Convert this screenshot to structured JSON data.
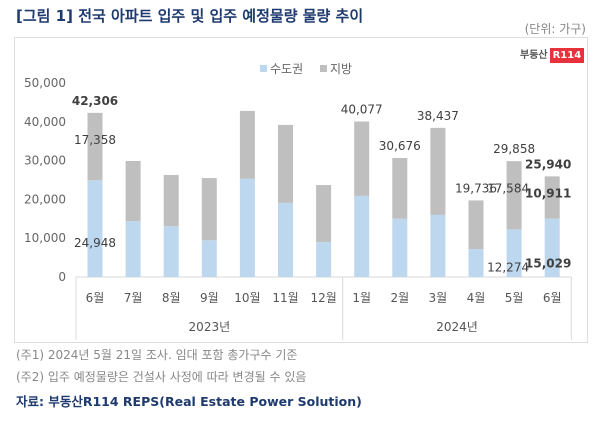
{
  "title": "[그림 1] 전국 아파트 입주 및 입주 예정물량 물량 추이",
  "unit": "(단위: 가구)",
  "logo": {
    "text": "부동산",
    "badge": "R114"
  },
  "notes": [
    "(주1) 2024년 5월 21일 조사. 임대 포함 총가구수 기준",
    "(주2) 입주 예정물량은 건설사 사정에 따라 변경될 수 있음"
  ],
  "source": "자료: 부동산R114 REPS(Real Estate Power Solution)",
  "colors": {
    "metro": "#bdd7ee",
    "local": "#bfbfbf"
  },
  "chart_data": {
    "type": "bar",
    "stacked": true,
    "categories": [
      "6월",
      "7월",
      "8월",
      "9월",
      "10월",
      "11월",
      "12월",
      "1월",
      "2월",
      "3월",
      "4월",
      "5월",
      "6월"
    ],
    "years": [
      {
        "label": "2023년",
        "count": 7
      },
      {
        "label": "2024년",
        "count": 6
      }
    ],
    "series": [
      {
        "name": "수도권",
        "values": [
          24948,
          14400,
          13100,
          9500,
          25300,
          19100,
          9000,
          20900,
          15000,
          16000,
          7200,
          12274,
          15029
        ]
      },
      {
        "name": "지방",
        "values": [
          17358,
          15500,
          13200,
          16000,
          17500,
          20100,
          14700,
          19177,
          15676,
          22437,
          12536,
          17584,
          10911
        ]
      }
    ],
    "totals": [
      42306,
      29900,
      26300,
      25500,
      42800,
      39200,
      23700,
      40077,
      30676,
      38437,
      19736,
      29858,
      25940
    ],
    "yticks": [
      "0",
      "10,000",
      "20,000",
      "30,000",
      "40,000",
      "50,000"
    ],
    "ylim": [
      0,
      50000
    ],
    "data_labels": [
      {
        "i": 0,
        "kind": "total",
        "text": "42,306",
        "bold": true
      },
      {
        "i": 0,
        "kind": "local",
        "text": "17,358"
      },
      {
        "i": 0,
        "kind": "metro",
        "text": "24,948"
      },
      {
        "i": 7,
        "kind": "total",
        "text": "40,077"
      },
      {
        "i": 8,
        "kind": "total",
        "text": "30,676"
      },
      {
        "i": 9,
        "kind": "total",
        "text": "38,437"
      },
      {
        "i": 10,
        "kind": "total",
        "text": "19,736"
      },
      {
        "i": 11,
        "kind": "total",
        "text": "29,858"
      },
      {
        "i": 11,
        "kind": "local",
        "text": "17,584"
      },
      {
        "i": 11,
        "kind": "metro",
        "text": "12,274"
      },
      {
        "i": 12,
        "kind": "total",
        "text": "25,940",
        "bold": true
      },
      {
        "i": 12,
        "kind": "local",
        "text": "10,911",
        "bold": true
      },
      {
        "i": 12,
        "kind": "metro",
        "text": "15,029",
        "bold": true
      }
    ],
    "legend": "top-center"
  }
}
